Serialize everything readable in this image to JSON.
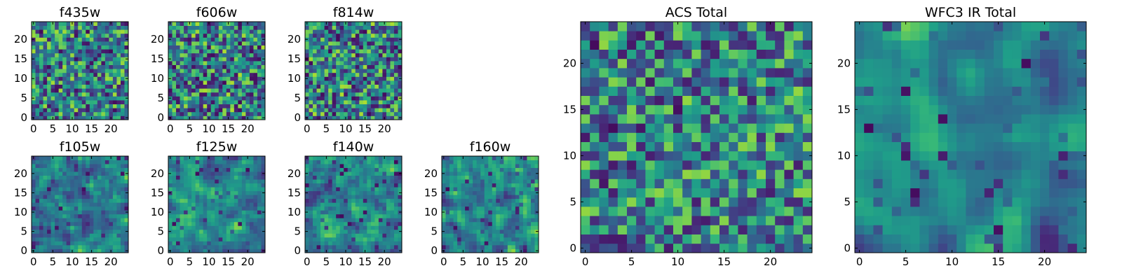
{
  "chart_data": [
    {
      "type": "heatmap",
      "title": "f435w",
      "colormap": "viridis",
      "xlim": [
        -0.5,
        24.5
      ],
      "ylim": [
        -0.5,
        24.5
      ],
      "xticks": [
        0,
        5,
        10,
        15,
        20
      ],
      "yticks": [
        0,
        5,
        10,
        15,
        20
      ],
      "tick_labels": [
        "0",
        "5",
        "10",
        "15",
        "20"
      ],
      "grid_size": 25,
      "noise_level": 0.55,
      "smoothing": 0,
      "seed": 11
    },
    {
      "type": "heatmap",
      "title": "f606w",
      "colormap": "viridis",
      "xlim": [
        -0.5,
        24.5
      ],
      "ylim": [
        -0.5,
        24.5
      ],
      "xticks": [
        0,
        5,
        10,
        15,
        20
      ],
      "yticks": [
        0,
        5,
        10,
        15,
        20
      ],
      "tick_labels": [
        "0",
        "5",
        "10",
        "15",
        "20"
      ],
      "grid_size": 25,
      "noise_level": 0.6,
      "smoothing": 0,
      "seed": 23
    },
    {
      "type": "heatmap",
      "title": "f814w",
      "colormap": "viridis",
      "xlim": [
        -0.5,
        24.5
      ],
      "ylim": [
        -0.5,
        24.5
      ],
      "xticks": [
        0,
        5,
        10,
        15,
        20
      ],
      "yticks": [
        0,
        5,
        10,
        15,
        20
      ],
      "tick_labels": [
        "0",
        "5",
        "10",
        "15",
        "20"
      ],
      "grid_size": 25,
      "noise_level": 0.6,
      "smoothing": 0,
      "seed": 37
    },
    {
      "type": "heatmap",
      "title": "f105w",
      "colormap": "viridis",
      "xlim": [
        -0.5,
        24.5
      ],
      "ylim": [
        -0.5,
        24.5
      ],
      "xticks": [
        0,
        5,
        10,
        15,
        20
      ],
      "yticks": [
        0,
        5,
        10,
        15,
        20
      ],
      "tick_labels": [
        "0",
        "5",
        "10",
        "15",
        "20"
      ],
      "grid_size": 25,
      "noise_level": 0.35,
      "smoothing": 1,
      "seed": 41
    },
    {
      "type": "heatmap",
      "title": "f125w",
      "colormap": "viridis",
      "xlim": [
        -0.5,
        24.5
      ],
      "ylim": [
        -0.5,
        24.5
      ],
      "xticks": [
        0,
        5,
        10,
        15,
        20
      ],
      "yticks": [
        0,
        5,
        10,
        15,
        20
      ],
      "tick_labels": [
        "0",
        "5",
        "10",
        "15",
        "20"
      ],
      "grid_size": 25,
      "noise_level": 0.35,
      "smoothing": 1,
      "seed": 53
    },
    {
      "type": "heatmap",
      "title": "f140w",
      "colormap": "viridis",
      "xlim": [
        -0.5,
        24.5
      ],
      "ylim": [
        -0.5,
        24.5
      ],
      "xticks": [
        0,
        5,
        10,
        15,
        20
      ],
      "yticks": [
        0,
        5,
        10,
        15,
        20
      ],
      "tick_labels": [
        "0",
        "5",
        "10",
        "15",
        "20"
      ],
      "grid_size": 25,
      "noise_level": 0.35,
      "smoothing": 1,
      "seed": 67
    },
    {
      "type": "heatmap",
      "title": "f160w",
      "colormap": "viridis",
      "xlim": [
        -0.5,
        24.5
      ],
      "ylim": [
        -0.5,
        24.5
      ],
      "xticks": [
        0,
        5,
        10,
        15,
        20
      ],
      "yticks": [
        0,
        5,
        10,
        15,
        20
      ],
      "tick_labels": [
        "0",
        "5",
        "10",
        "15",
        "20"
      ],
      "grid_size": 25,
      "noise_level": 0.45,
      "smoothing": 1,
      "seed": 79
    },
    {
      "type": "heatmap",
      "title": "ACS Total",
      "colormap": "viridis",
      "xlim": [
        -0.5,
        24.5
      ],
      "ylim": [
        -0.5,
        24.5
      ],
      "xticks": [
        0,
        5,
        10,
        15,
        20
      ],
      "yticks": [
        0,
        5,
        10,
        15,
        20
      ],
      "tick_labels": [
        "0",
        "5",
        "10",
        "15",
        "20"
      ],
      "grid_size": 25,
      "noise_level": 0.45,
      "smoothing": 0,
      "seed": 97
    },
    {
      "type": "heatmap",
      "title": "WFC3 IR Total",
      "colormap": "viridis",
      "xlim": [
        -0.5,
        24.5
      ],
      "ylim": [
        -0.5,
        24.5
      ],
      "xticks": [
        0,
        5,
        10,
        15,
        20
      ],
      "yticks": [
        0,
        5,
        10,
        15,
        20
      ],
      "tick_labels": [
        "0",
        "5",
        "10",
        "15",
        "20"
      ],
      "grid_size": 25,
      "noise_level": 0.3,
      "smoothing": 2,
      "seed": 131
    }
  ]
}
